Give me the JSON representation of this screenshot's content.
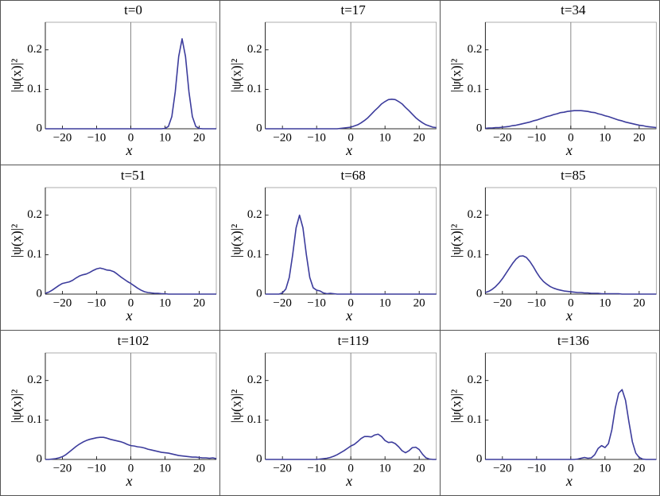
{
  "chart_data": [
    {
      "type": "line",
      "title": "t=0",
      "xlabel": "x",
      "ylabel": "|ψ(x)|²",
      "color": "#3c3c9c",
      "xlim": [
        -25,
        25
      ],
      "ylim": [
        0,
        0.27
      ],
      "xticks": [
        {
          "value": -20,
          "label": "−20"
        },
        {
          "value": -10,
          "label": "−10"
        },
        0,
        10,
        20
      ],
      "yticks": [
        0,
        0.1,
        0.2
      ],
      "x": [
        -25,
        -24,
        -23,
        -22,
        -21,
        -20,
        -19,
        -18,
        -17,
        -16,
        -15,
        -14,
        -13,
        -12,
        -11,
        -10,
        -9,
        -8,
        -7,
        -6,
        -5,
        -4,
        -3,
        -2,
        -1,
        0,
        1,
        2,
        3,
        4,
        5,
        6,
        7,
        8,
        9,
        10,
        11,
        12,
        13,
        14,
        15,
        16,
        17,
        18,
        19,
        20,
        21,
        22,
        23,
        24,
        25
      ],
      "values": [
        0,
        0,
        0,
        0,
        0,
        0,
        0,
        0,
        0,
        0,
        0,
        0,
        0,
        0,
        0,
        0,
        0,
        0,
        0,
        0,
        0,
        0,
        0,
        0,
        0,
        0,
        0,
        0,
        0,
        0,
        0,
        0,
        0,
        0,
        0,
        0.001,
        0.006,
        0.031,
        0.094,
        0.183,
        0.228,
        0.183,
        0.094,
        0.031,
        0.006,
        0.001,
        0,
        0,
        0,
        0,
        0
      ]
    },
    {
      "type": "line",
      "title": "t=17",
      "xlabel": "x",
      "ylabel": "|ψ(x)|²",
      "color": "#3c3c9c",
      "xlim": [
        -25,
        25
      ],
      "ylim": [
        0,
        0.27
      ],
      "xticks": [
        {
          "value": -20,
          "label": "−20"
        },
        {
          "value": -10,
          "label": "−10"
        },
        0,
        10,
        20
      ],
      "yticks": [
        0,
        0.1,
        0.2
      ],
      "x": [
        -25,
        -24,
        -23,
        -22,
        -21,
        -20,
        -19,
        -18,
        -17,
        -16,
        -15,
        -14,
        -13,
        -12,
        -11,
        -10,
        -9,
        -8,
        -7,
        -6,
        -5,
        -4,
        -3,
        -2,
        -1,
        0,
        1,
        2,
        3,
        4,
        5,
        6,
        7,
        8,
        9,
        10,
        11,
        12,
        13,
        14,
        15,
        16,
        17,
        18,
        19,
        20,
        21,
        22,
        23,
        24,
        25
      ],
      "values": [
        0,
        0,
        0,
        0,
        0,
        0,
        0,
        0,
        0,
        0,
        0,
        0,
        0,
        0,
        0,
        0,
        0,
        0,
        0,
        0,
        0,
        0,
        0.001,
        0.002,
        0.003,
        0.004,
        0.007,
        0.01,
        0.015,
        0.021,
        0.028,
        0.037,
        0.046,
        0.054,
        0.063,
        0.069,
        0.074,
        0.075,
        0.074,
        0.069,
        0.063,
        0.054,
        0.046,
        0.037,
        0.028,
        0.021,
        0.015,
        0.01,
        0.007,
        0.004,
        0.003
      ]
    },
    {
      "type": "line",
      "title": "t=34",
      "xlabel": "x",
      "ylabel": "|ψ(x)|²",
      "color": "#3c3c9c",
      "xlim": [
        -25,
        25
      ],
      "ylim": [
        0,
        0.27
      ],
      "xticks": [
        {
          "value": -20,
          "label": "−20"
        },
        {
          "value": -10,
          "label": "−10"
        },
        0,
        10,
        20
      ],
      "yticks": [
        0,
        0.1,
        0.2
      ],
      "x": [
        -25,
        -24,
        -23,
        -22,
        -21,
        -20,
        -19,
        -18,
        -17,
        -16,
        -15,
        -14,
        -13,
        -12,
        -11,
        -10,
        -9,
        -8,
        -7,
        -6,
        -5,
        -4,
        -3,
        -2,
        -1,
        0,
        1,
        2,
        3,
        4,
        5,
        6,
        7,
        8,
        9,
        10,
        11,
        12,
        13,
        14,
        15,
        16,
        17,
        18,
        19,
        20,
        21,
        22,
        23,
        24,
        25
      ],
      "values": [
        0.001,
        0.002,
        0.002,
        0.003,
        0.003,
        0.004,
        0.005,
        0.006,
        0.008,
        0.009,
        0.011,
        0.013,
        0.015,
        0.017,
        0.02,
        0.022,
        0.025,
        0.028,
        0.031,
        0.033,
        0.036,
        0.038,
        0.041,
        0.042,
        0.044,
        0.045,
        0.046,
        0.046,
        0.046,
        0.045,
        0.044,
        0.042,
        0.041,
        0.038,
        0.036,
        0.033,
        0.031,
        0.028,
        0.025,
        0.022,
        0.02,
        0.017,
        0.015,
        0.013,
        0.011,
        0.009,
        0.008,
        0.006,
        0.005,
        0.004,
        0.003
      ]
    },
    {
      "type": "line",
      "title": "t=51",
      "xlabel": "x",
      "ylabel": "|ψ(x)|²",
      "color": "#3c3c9c",
      "xlim": [
        -25,
        25
      ],
      "ylim": [
        0,
        0.27
      ],
      "xticks": [
        {
          "value": -20,
          "label": "−20"
        },
        {
          "value": -10,
          "label": "−10"
        },
        0,
        10,
        20
      ],
      "yticks": [
        0,
        0.1,
        0.2
      ],
      "x": [
        -25,
        -24,
        -23,
        -22,
        -21,
        -20,
        -19,
        -18,
        -17,
        -16,
        -15,
        -14,
        -13,
        -12,
        -11,
        -10,
        -9,
        -8,
        -7,
        -6,
        -5,
        -4,
        -3,
        -2,
        -1,
        0,
        1,
        2,
        3,
        4,
        5,
        6,
        7,
        8,
        9,
        10,
        11,
        12,
        13,
        14,
        15,
        16,
        17,
        18,
        19,
        20,
        21,
        22,
        23,
        24,
        25
      ],
      "values": [
        0.002,
        0.005,
        0.01,
        0.016,
        0.022,
        0.027,
        0.029,
        0.031,
        0.035,
        0.041,
        0.046,
        0.049,
        0.051,
        0.055,
        0.06,
        0.064,
        0.066,
        0.064,
        0.061,
        0.06,
        0.057,
        0.051,
        0.044,
        0.038,
        0.032,
        0.027,
        0.021,
        0.015,
        0.01,
        0.006,
        0.004,
        0.003,
        0.002,
        0.002,
        0.001,
        0.001,
        0,
        0,
        0,
        0,
        0,
        0,
        0,
        0,
        0,
        0,
        0,
        0,
        0,
        0,
        0
      ]
    },
    {
      "type": "line",
      "title": "t=68",
      "xlabel": "x",
      "ylabel": "|ψ(x)|²",
      "color": "#3c3c9c",
      "xlim": [
        -25,
        25
      ],
      "ylim": [
        0,
        0.27
      ],
      "xticks": [
        {
          "value": -20,
          "label": "−20"
        },
        {
          "value": -10,
          "label": "−10"
        },
        0,
        10,
        20
      ],
      "yticks": [
        0,
        0.1,
        0.2
      ],
      "x": [
        -25,
        -24,
        -23,
        -22,
        -21,
        -20,
        -19,
        -18,
        -17,
        -16,
        -15,
        -14,
        -13,
        -12,
        -11,
        -10,
        -9,
        -8,
        -7,
        -6,
        -5,
        -4,
        -3,
        -2,
        -1,
        0,
        1,
        2,
        3,
        4,
        5,
        6,
        7,
        8,
        9,
        10,
        11,
        12,
        13,
        14,
        15,
        16,
        17,
        18,
        19,
        20,
        21,
        22,
        23,
        24,
        25
      ],
      "values": [
        0,
        0,
        0,
        0,
        0,
        0.003,
        0.013,
        0.042,
        0.1,
        0.168,
        0.2,
        0.168,
        0.1,
        0.042,
        0.016,
        0.01,
        0.008,
        0.003,
        0.001,
        0.002,
        0.001,
        0,
        0,
        0,
        0,
        0,
        0,
        0,
        0,
        0,
        0,
        0,
        0,
        0,
        0,
        0,
        0,
        0,
        0,
        0,
        0,
        0,
        0,
        0,
        0,
        0,
        0,
        0,
        0,
        0,
        0
      ]
    },
    {
      "type": "line",
      "title": "t=85",
      "xlabel": "x",
      "ylabel": "|ψ(x)|²",
      "color": "#3c3c9c",
      "xlim": [
        -25,
        25
      ],
      "ylim": [
        0,
        0.27
      ],
      "xticks": [
        {
          "value": -20,
          "label": "−20"
        },
        {
          "value": -10,
          "label": "−10"
        },
        0,
        10,
        20
      ],
      "yticks": [
        0,
        0.1,
        0.2
      ],
      "x": [
        -25,
        -24,
        -23,
        -22,
        -21,
        -20,
        -19,
        -18,
        -17,
        -16,
        -15,
        -14,
        -13,
        -12,
        -11,
        -10,
        -9,
        -8,
        -7,
        -6,
        -5,
        -4,
        -3,
        -2,
        -1,
        0,
        1,
        2,
        3,
        4,
        5,
        6,
        7,
        8,
        9,
        10,
        11,
        12,
        13,
        14,
        15,
        16,
        17,
        18,
        19,
        20,
        21,
        22,
        23,
        24,
        25
      ],
      "values": [
        0.004,
        0.007,
        0.012,
        0.019,
        0.028,
        0.039,
        0.052,
        0.065,
        0.078,
        0.089,
        0.096,
        0.097,
        0.093,
        0.083,
        0.07,
        0.055,
        0.042,
        0.032,
        0.025,
        0.019,
        0.015,
        0.012,
        0.01,
        0.008,
        0.007,
        0.006,
        0.005,
        0.004,
        0.004,
        0.003,
        0.003,
        0.002,
        0.002,
        0.002,
        0.001,
        0.001,
        0.001,
        0.001,
        0.001,
        0.001,
        0,
        0,
        0,
        0,
        0,
        0,
        0,
        0,
        0,
        0,
        0
      ]
    },
    {
      "type": "line",
      "title": "t=102",
      "xlabel": "x",
      "ylabel": "|ψ(x)|²",
      "color": "#3c3c9c",
      "xlim": [
        -25,
        25
      ],
      "ylim": [
        0,
        0.27
      ],
      "xticks": [
        {
          "value": -20,
          "label": "−20"
        },
        {
          "value": -10,
          "label": "−10"
        },
        0,
        10,
        20
      ],
      "yticks": [
        0,
        0.1,
        0.2
      ],
      "x": [
        -25,
        -24,
        -23,
        -22,
        -21,
        -20,
        -19,
        -18,
        -17,
        -16,
        -15,
        -14,
        -13,
        -12,
        -11,
        -10,
        -9,
        -8,
        -7,
        -6,
        -5,
        -4,
        -3,
        -2,
        -1,
        0,
        1,
        2,
        3,
        4,
        5,
        6,
        7,
        8,
        9,
        10,
        11,
        12,
        13,
        14,
        15,
        16,
        17,
        18,
        19,
        20,
        21,
        22,
        23,
        24,
        25
      ],
      "values": [
        0,
        0,
        0.001,
        0.002,
        0.004,
        0.007,
        0.012,
        0.019,
        0.026,
        0.033,
        0.039,
        0.044,
        0.048,
        0.051,
        0.053,
        0.055,
        0.056,
        0.056,
        0.054,
        0.051,
        0.049,
        0.047,
        0.045,
        0.042,
        0.038,
        0.035,
        0.034,
        0.032,
        0.031,
        0.029,
        0.026,
        0.024,
        0.022,
        0.02,
        0.018,
        0.017,
        0.016,
        0.014,
        0.012,
        0.01,
        0.009,
        0.008,
        0.007,
        0.006,
        0.006,
        0.005,
        0.004,
        0.004,
        0.003,
        0.004,
        0.002
      ]
    },
    {
      "type": "line",
      "title": "t=119",
      "xlabel": "x",
      "ylabel": "|ψ(x)|²",
      "color": "#3c3c9c",
      "xlim": [
        -25,
        25
      ],
      "ylim": [
        0,
        0.27
      ],
      "xticks": [
        {
          "value": -20,
          "label": "−20"
        },
        {
          "value": -10,
          "label": "−10"
        },
        0,
        10,
        20
      ],
      "yticks": [
        0,
        0.1,
        0.2
      ],
      "x": [
        -25,
        -24,
        -23,
        -22,
        -21,
        -20,
        -19,
        -18,
        -17,
        -16,
        -15,
        -14,
        -13,
        -12,
        -11,
        -10,
        -9,
        -8,
        -7,
        -6,
        -5,
        -4,
        -3,
        -2,
        -1,
        0,
        1,
        2,
        3,
        4,
        5,
        6,
        7,
        8,
        9,
        10,
        11,
        12,
        13,
        14,
        15,
        16,
        17,
        18,
        19,
        20,
        21,
        22,
        23,
        24,
        25
      ],
      "values": [
        0,
        0,
        0,
        0,
        0,
        0,
        0,
        0,
        0,
        0,
        0,
        0,
        0,
        0,
        0,
        0,
        0.001,
        0.002,
        0.003,
        0.005,
        0.008,
        0.012,
        0.017,
        0.022,
        0.028,
        0.034,
        0.038,
        0.045,
        0.053,
        0.058,
        0.058,
        0.057,
        0.062,
        0.064,
        0.058,
        0.048,
        0.043,
        0.044,
        0.04,
        0.032,
        0.022,
        0.017,
        0.022,
        0.03,
        0.031,
        0.025,
        0.013,
        0.004,
        0.001,
        0,
        0
      ]
    },
    {
      "type": "line",
      "title": "t=136",
      "xlabel": "x",
      "ylabel": "|ψ(x)|²",
      "color": "#3c3c9c",
      "xlim": [
        -25,
        25
      ],
      "ylim": [
        0,
        0.27
      ],
      "xticks": [
        {
          "value": -20,
          "label": "−20"
        },
        {
          "value": -10,
          "label": "−10"
        },
        0,
        10,
        20
      ],
      "yticks": [
        0,
        0.1,
        0.2
      ],
      "x": [
        -25,
        -24,
        -23,
        -22,
        -21,
        -20,
        -19,
        -18,
        -17,
        -16,
        -15,
        -14,
        -13,
        -12,
        -11,
        -10,
        -9,
        -8,
        -7,
        -6,
        -5,
        -4,
        -3,
        -2,
        -1,
        0,
        1,
        2,
        3,
        4,
        5,
        6,
        7,
        8,
        9,
        10,
        11,
        12,
        13,
        14,
        15,
        16,
        17,
        18,
        19,
        20,
        21,
        22,
        23,
        24,
        25
      ],
      "values": [
        0,
        0,
        0,
        0,
        0,
        0,
        0,
        0,
        0,
        0,
        0,
        0,
        0,
        0,
        0,
        0,
        0,
        0,
        0,
        0,
        0,
        0,
        0,
        0,
        0,
        0,
        0,
        0.001,
        0.003,
        0.005,
        0.003,
        0.004,
        0.012,
        0.028,
        0.035,
        0.03,
        0.04,
        0.075,
        0.13,
        0.168,
        0.177,
        0.15,
        0.095,
        0.045,
        0.016,
        0.005,
        0.001,
        0,
        0,
        0,
        0
      ]
    }
  ]
}
